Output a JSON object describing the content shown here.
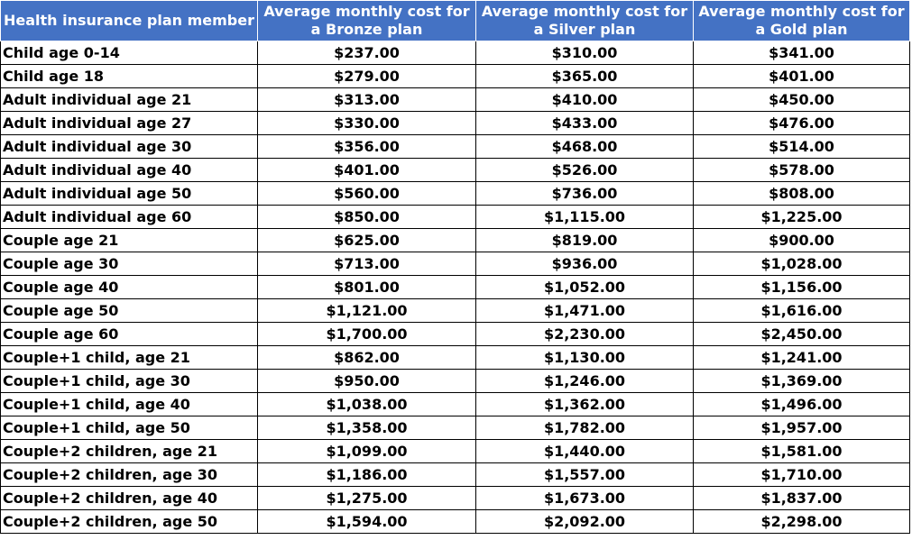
{
  "chart_data": {
    "type": "table",
    "columns": [
      "Health insurance plan member",
      "Average monthly cost for a Bronze plan",
      "Average monthly cost for a Silver plan",
      "Average monthly cost for a Gold plan"
    ],
    "rows": [
      [
        "Child age 0-14",
        "$237.00",
        "$310.00",
        "$341.00"
      ],
      [
        "Child age 18",
        "$279.00",
        "$365.00",
        "$401.00"
      ],
      [
        "Adult individual age 21",
        "$313.00",
        "$410.00",
        "$450.00"
      ],
      [
        "Adult individual age 27",
        "$330.00",
        "$433.00",
        "$476.00"
      ],
      [
        "Adult individual age 30",
        "$356.00",
        "$468.00",
        "$514.00"
      ],
      [
        "Adult individual age 40",
        "$401.00",
        "$526.00",
        "$578.00"
      ],
      [
        "Adult individual age 50",
        "$560.00",
        "$736.00",
        "$808.00"
      ],
      [
        "Adult individual age 60",
        "$850.00",
        "$1,115.00",
        "$1,225.00"
      ],
      [
        "Couple age 21",
        "$625.00",
        "$819.00",
        "$900.00"
      ],
      [
        "Couple age 30",
        "$713.00",
        "$936.00",
        "$1,028.00"
      ],
      [
        "Couple age 40",
        "$801.00",
        "$1,052.00",
        "$1,156.00"
      ],
      [
        "Couple age 50",
        "$1,121.00",
        "$1,471.00",
        "$1,616.00"
      ],
      [
        "Couple age 60",
        "$1,700.00",
        "$2,230.00",
        "$2,450.00"
      ],
      [
        "Couple+1 child, age 21",
        "$862.00",
        "$1,130.00",
        "$1,241.00"
      ],
      [
        "Couple+1 child, age 30",
        "$950.00",
        "$1,246.00",
        "$1,369.00"
      ],
      [
        "Couple+1 child, age 40",
        "$1,038.00",
        "$1,362.00",
        "$1,496.00"
      ],
      [
        "Couple+1 child, age 50",
        "$1,358.00",
        "$1,782.00",
        "$1,957.00"
      ],
      [
        "Couple+2 children, age 21",
        "$1,099.00",
        "$1,440.00",
        "$1,581.00"
      ],
      [
        "Couple+2 children, age 30",
        "$1,186.00",
        "$1,557.00",
        "$1,710.00"
      ],
      [
        "Couple+2 children, age 40",
        "$1,275.00",
        "$1,673.00",
        "$1,837.00"
      ],
      [
        "Couple+2 children, age 50",
        "$1,594.00",
        "$2,092.00",
        "$2,298.00"
      ]
    ],
    "colors": {
      "header_background": "#4472c4",
      "header_text": "#ffffff"
    }
  }
}
